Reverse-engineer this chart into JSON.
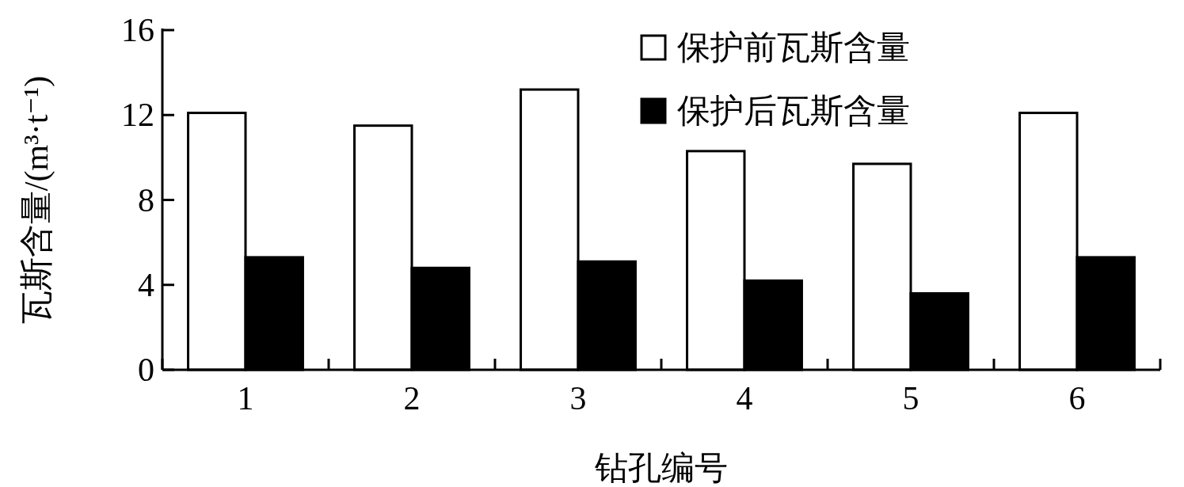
{
  "chart_data": {
    "type": "bar",
    "xlabel": "钻孔编号",
    "ylabel": "瓦斯含量/(m³·t⁻¹)",
    "categories": [
      "1",
      "2",
      "3",
      "4",
      "5",
      "6"
    ],
    "series": [
      {
        "name": "保护前瓦斯含量",
        "color": "#ffffff",
        "values": [
          12.1,
          11.5,
          13.2,
          10.3,
          9.7,
          12.1
        ]
      },
      {
        "name": "保护后瓦斯含量",
        "color": "#000000",
        "values": [
          5.3,
          4.8,
          5.1,
          4.2,
          3.6,
          5.3
        ]
      }
    ],
    "ylim": [
      0,
      16
    ],
    "yticks": [
      0,
      4,
      8,
      12,
      16
    ],
    "legend": "top right"
  }
}
